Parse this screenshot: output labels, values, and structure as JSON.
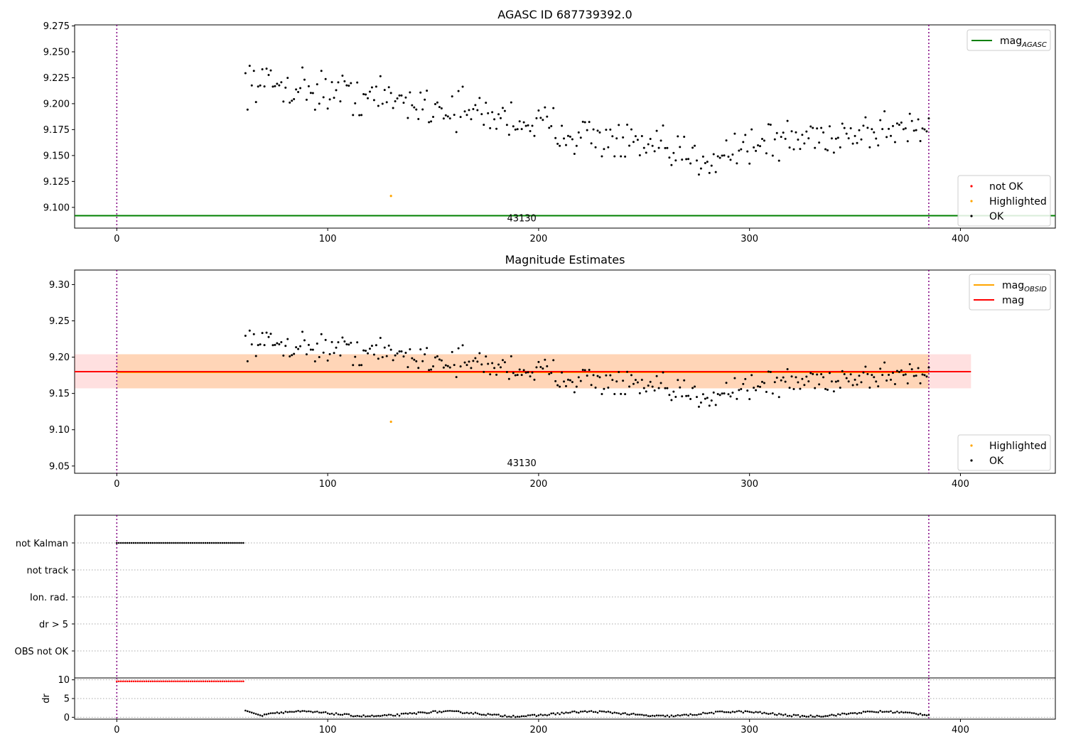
{
  "chart_data": [
    {
      "type": "scatter",
      "title": "AGASC ID 687739392.0",
      "xlim": [
        -20,
        445
      ],
      "ylim": [
        9.08,
        9.276
      ],
      "xticks": [
        0,
        100,
        200,
        300,
        400
      ],
      "xtick_labels": [
        "0",
        "100",
        "200",
        "300",
        "400"
      ],
      "yticks": [
        9.1,
        9.125,
        9.15,
        9.175,
        9.2,
        9.225,
        9.25,
        9.275
      ],
      "ytick_labels": [
        "9.100",
        "9.125",
        "9.150",
        "9.175",
        "9.200",
        "9.225",
        "9.250",
        "9.275"
      ],
      "vlines": [
        0,
        385
      ],
      "hline": {
        "name": "mag_AGASC",
        "value": 9.092,
        "color": "#008000"
      },
      "annotation": {
        "text": "43130",
        "x": 192
      },
      "ok_range": [
        61,
        385
      ],
      "highlighted_points": [
        {
          "x": 130,
          "y": 9.111
        }
      ],
      "legend_top": [
        {
          "label": "mag",
          "sub": "AGASC",
          "color": "#008000",
          "marker": "line"
        }
      ],
      "legend_bottom": [
        {
          "label": "not OK",
          "color": "#ff0000",
          "marker": "dot"
        },
        {
          "label": "Highlighted",
          "color": "#ffa500",
          "marker": "dot"
        },
        {
          "label": "OK",
          "color": "#000000",
          "marker": "dot"
        }
      ]
    },
    {
      "type": "scatter",
      "title": "Magnitude Estimates",
      "xlim": [
        -20,
        445
      ],
      "ylim": [
        9.04,
        9.32
      ],
      "xticks": [
        0,
        100,
        200,
        300,
        400
      ],
      "xtick_labels": [
        "0",
        "100",
        "200",
        "300",
        "400"
      ],
      "yticks": [
        9.05,
        9.1,
        9.15,
        9.2,
        9.25,
        9.3
      ],
      "ytick_labels": [
        "9.05",
        "9.10",
        "9.15",
        "9.20",
        "9.25",
        "9.30"
      ],
      "vlines": [
        0,
        385
      ],
      "mag_obsid": {
        "value": 9.179,
        "band": [
          9.157,
          9.204
        ],
        "color": "#ffa500"
      },
      "mag": {
        "value": 9.18,
        "band": [
          9.157,
          9.204
        ],
        "color": "#ff0000"
      },
      "annotation": {
        "text": "43130",
        "x": 192
      },
      "highlighted_points": [
        {
          "x": 130,
          "y": 9.111
        }
      ],
      "legend_top": [
        {
          "label": "mag",
          "sub": "OBSID",
          "color": "#ffa500",
          "marker": "line"
        },
        {
          "label": "mag",
          "sub": "",
          "color": "#ff0000",
          "marker": "line"
        }
      ],
      "legend_bottom": [
        {
          "label": "Highlighted",
          "color": "#ffa500",
          "marker": "dot"
        },
        {
          "label": "OK",
          "color": "#000000",
          "marker": "dot"
        }
      ]
    },
    {
      "type": "scatter",
      "title": "",
      "xlim": [
        -20,
        445
      ],
      "categories": [
        "not Kalman",
        "not track",
        "Ion. rad.",
        "dr > 5",
        "OBS not OK"
      ],
      "flag_ranges": [
        {
          "category": "not Kalman",
          "x_start": 0,
          "x_end": 60
        }
      ]
    },
    {
      "type": "scatter",
      "title": "",
      "xlim": [
        -20,
        445
      ],
      "ylim": [
        -0.5,
        10.5
      ],
      "yticks": [
        0,
        5,
        10
      ],
      "ytick_labels": [
        "0",
        "5",
        "10"
      ],
      "xticks": [
        0,
        100,
        200,
        300,
        400
      ],
      "xtick_labels": [
        "0",
        "100",
        "200",
        "300",
        "400"
      ],
      "ylabel": "dr",
      "high_range": {
        "x_start": 0,
        "x_end": 60,
        "value": 9.6
      },
      "low_range": {
        "x_start": 61,
        "x_end": 385
      }
    }
  ]
}
